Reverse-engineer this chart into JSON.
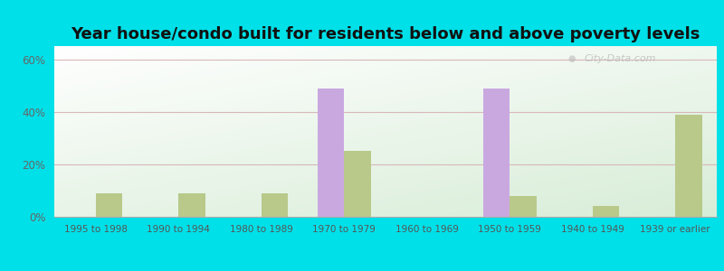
{
  "title": "Year house/condo built for residents below and above poverty levels",
  "categories": [
    "1995 to 1998",
    "1990 to 1994",
    "1980 to 1989",
    "1970 to 1979",
    "1960 to 1969",
    "1950 to 1959",
    "1940 to 1949",
    "1939 or earlier"
  ],
  "below_poverty": [
    0,
    0,
    0,
    49,
    0,
    49,
    0,
    0
  ],
  "above_poverty": [
    9,
    9,
    9,
    25,
    0,
    8,
    4,
    39
  ],
  "below_color": "#c9a8e0",
  "above_color": "#b8c98a",
  "ylabel_ticks": [
    0,
    20,
    40,
    60
  ],
  "ylabel_labels": [
    "0%",
    "20%",
    "40%",
    "60%"
  ],
  "ylim": [
    0,
    65
  ],
  "outer_background": "#00e0e8",
  "title_fontsize": 13,
  "watermark": "City-Data.com",
  "bar_width": 0.32
}
